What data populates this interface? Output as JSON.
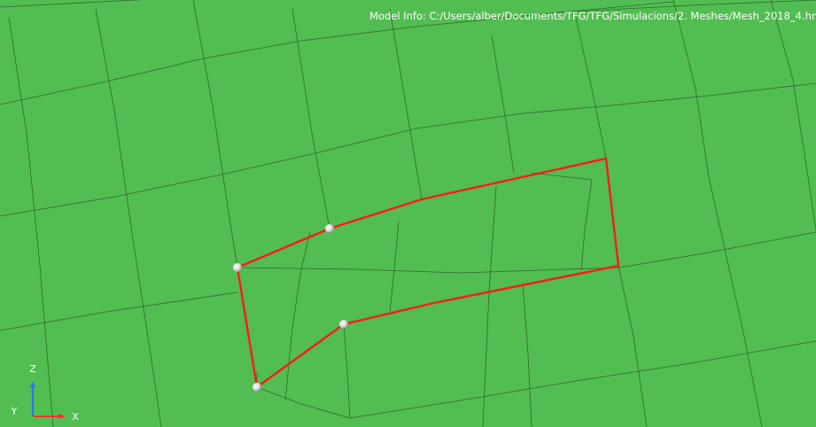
{
  "viewport": {
    "background_color": "#52bd52",
    "mesh_line_color": "#2f6b2f",
    "selection_color": "#ff1a1a",
    "node_color": "#e6e6e6"
  },
  "model_info": {
    "label": "Model Info:",
    "path": "C:/Users/alber/Documents/TFG/TFG/Simulacions/2. Meshes/Mesh_2018_4.hm"
  },
  "triad": {
    "z_label": "Z",
    "y_label": "Y",
    "x_label": "X",
    "z_color": "#2f6fff",
    "y_color": "#39d639",
    "x_color": "#ff3030"
  }
}
